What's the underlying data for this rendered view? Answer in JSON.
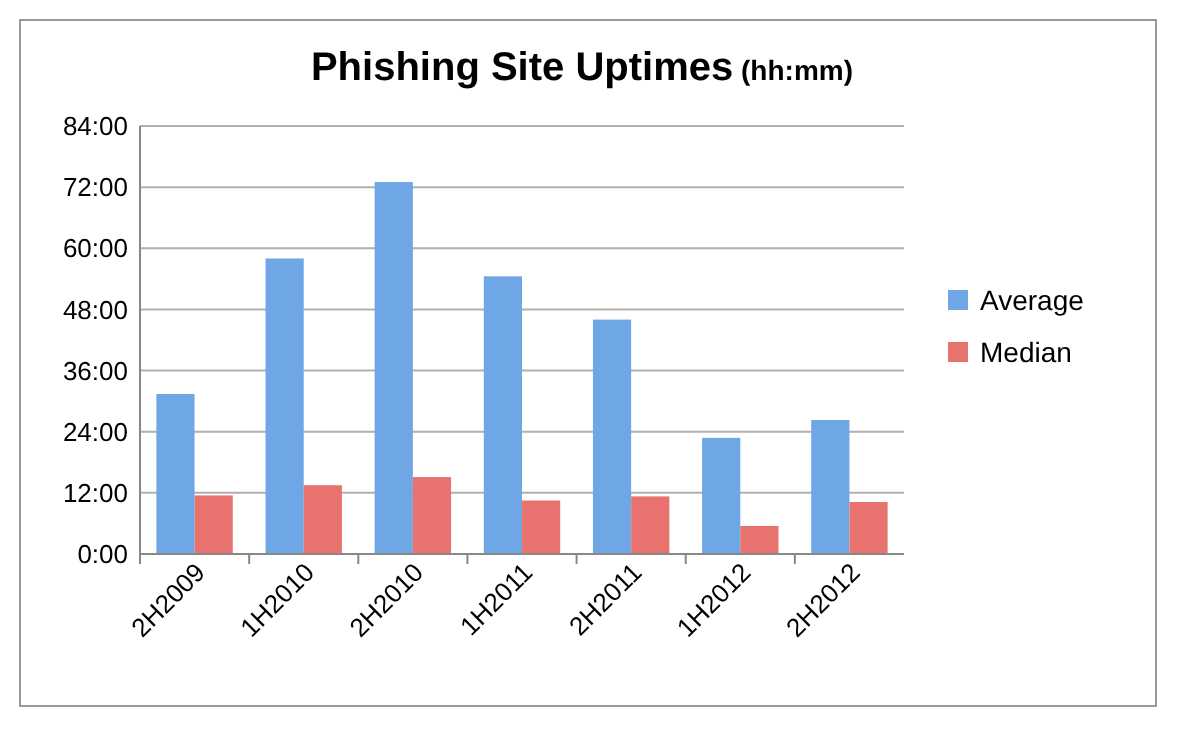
{
  "chart_data": {
    "type": "bar",
    "title": "Phishing Site Uptimes",
    "subtitle": "(hh:mm)",
    "categories": [
      "2H2009",
      "1H2010",
      "2H2010",
      "1H2011",
      "2H2011",
      "1H2012",
      "2H2012"
    ],
    "series": [
      {
        "name": "Average",
        "color": "#6fa6e6",
        "values": [
          31.4,
          58,
          73,
          54.5,
          46,
          22.8,
          26.3
        ]
      },
      {
        "name": "Median",
        "color": "#e8726e",
        "values": [
          11.5,
          13.5,
          15.1,
          10.5,
          11.3,
          5.5,
          10.2
        ]
      }
    ],
    "ylim": [
      0,
      84
    ],
    "yticks": [
      {
        "value": 0,
        "label": "0:00"
      },
      {
        "value": 12,
        "label": "12:00"
      },
      {
        "value": 24,
        "label": "24:00"
      },
      {
        "value": 36,
        "label": "36:00"
      },
      {
        "value": 48,
        "label": "48:00"
      },
      {
        "value": 60,
        "label": "60:00"
      },
      {
        "value": 72,
        "label": "72:00"
      },
      {
        "value": 84,
        "label": "84:00"
      }
    ],
    "grid": "y",
    "legend": "right"
  }
}
